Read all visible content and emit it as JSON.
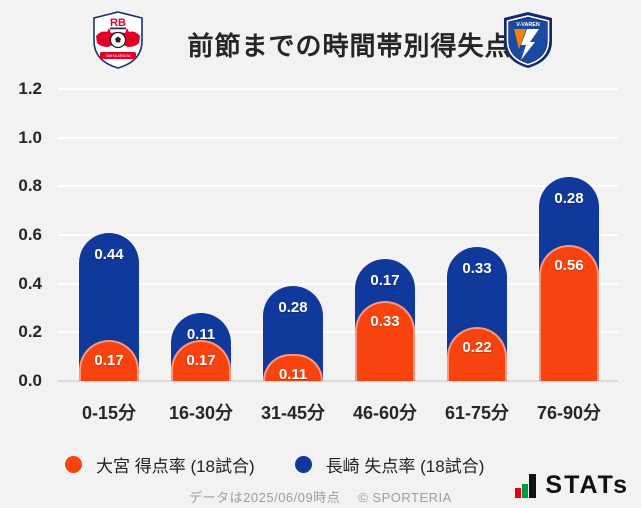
{
  "header": {
    "title": "前節までの時間帯別得失点率",
    "home_crest": "rb-omiya-crest",
    "home_crest_initials": "RB",
    "home_crest_banner": "OMIYA ARDIJA",
    "away_crest": "v-varen-nagasaki-crest",
    "away_crest_text": "V-VAREN"
  },
  "chart_data": {
    "type": "bar",
    "stacked": true,
    "categories": [
      "0-15分",
      "16-30分",
      "31-45分",
      "46-60分",
      "61-75分",
      "76-90分"
    ],
    "series": [
      {
        "name": "大宮 得点率 (18試合)",
        "color": "#f7430f",
        "values": [
          0.17,
          0.17,
          0.11,
          0.33,
          0.22,
          0.56
        ]
      },
      {
        "name": "長崎 失点率 (18試合)",
        "color": "#10399c",
        "values": [
          0.44,
          0.11,
          0.28,
          0.17,
          0.33,
          0.28
        ]
      }
    ],
    "title": "前節までの時間帯別得失点率",
    "xlabel": "",
    "ylabel": "",
    "ylim": [
      0,
      1.2
    ],
    "yticks": [
      "0.0",
      "0.2",
      "0.4",
      "0.6",
      "0.8",
      "1.0",
      "1.2"
    ],
    "grid": true,
    "gridline_color": "#ffffff",
    "background_color": "#f2f2f2",
    "legend_position": "bottom"
  },
  "legend": {
    "items": [
      {
        "label": "大宮 得点率 (18試合)",
        "color": "#f7430f"
      },
      {
        "label": "長崎 失点率 (18試合)",
        "color": "#10399c"
      }
    ]
  },
  "footer": {
    "note": "データは2025/06/09時点",
    "copyright": "© SPORTERIA",
    "brand": "STATs"
  }
}
